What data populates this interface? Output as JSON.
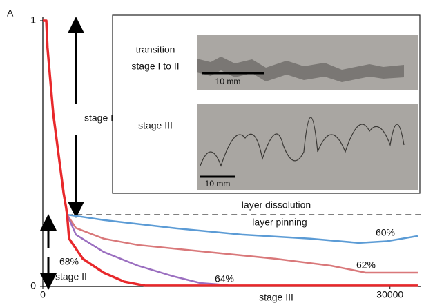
{
  "chart_data": {
    "type": "line",
    "panel_label": "A",
    "x_label": "stage III",
    "xlim": [
      0,
      32700
    ],
    "ylim": [
      0,
      1
    ],
    "xticks": [
      0,
      30000
    ],
    "yticks": [
      0,
      1
    ],
    "reference_line": 0.27,
    "annotations": {
      "stage_1": "stage I",
      "dissolution": "layer dissolution",
      "pinning": "layer pinning",
      "stage_2": "stage II"
    },
    "series": [
      {
        "name": "60%",
        "color": "#5b9bd5",
        "x": [
          0,
          300,
          400,
          600,
          900,
          1200,
          1500,
          1800,
          2000,
          2100,
          5250,
          11200,
          17200,
          23100,
          27300,
          29700,
          32400
        ],
        "values": [
          1,
          1,
          0.9,
          0.8,
          0.65,
          0.55,
          0.45,
          0.35,
          0.3,
          0.27,
          0.25,
          0.22,
          0.195,
          0.18,
          0.164,
          0.17,
          0.19
        ]
      },
      {
        "name": "62%",
        "color": "#d9787a",
        "x": [
          0,
          300,
          400,
          600,
          900,
          1200,
          1500,
          1800,
          2000,
          2100,
          2860,
          5250,
          8230,
          14200,
          20150,
          24900,
          27900,
          32400
        ],
        "values": [
          1,
          1,
          0.9,
          0.8,
          0.65,
          0.55,
          0.45,
          0.35,
          0.3,
          0.27,
          0.22,
          0.18,
          0.156,
          0.13,
          0.104,
          0.078,
          0.052,
          0.052
        ]
      },
      {
        "name": "64%",
        "color": "#9b6fc0",
        "x": [
          0,
          300,
          400,
          600,
          900,
          1200,
          1500,
          1800,
          2000,
          2100,
          2860,
          5250,
          8230,
          11200,
          13600,
          16000
        ],
        "values": [
          1,
          1,
          0.9,
          0.8,
          0.65,
          0.55,
          0.45,
          0.35,
          0.3,
          0.27,
          0.195,
          0.13,
          0.078,
          0.039,
          0.013,
          0.005
        ]
      },
      {
        "name": "68%",
        "color": "#e8282b",
        "x": [
          0,
          300,
          400,
          600,
          900,
          1200,
          1500,
          1800,
          2000,
          2100,
          2270,
          3460,
          5250,
          7030,
          8830,
          32400
        ],
        "values": [
          1,
          1,
          0.9,
          0.8,
          0.65,
          0.55,
          0.45,
          0.35,
          0.3,
          0.27,
          0.18,
          0.104,
          0.052,
          0.018,
          0.003,
          0.003
        ]
      }
    ]
  },
  "inset": {
    "rows": [
      {
        "label": [
          "transition",
          "stage I to II"
        ],
        "scale_bar": "10 mm"
      },
      {
        "label": [
          "stage III"
        ],
        "scale_bar": "10 mm"
      }
    ]
  }
}
